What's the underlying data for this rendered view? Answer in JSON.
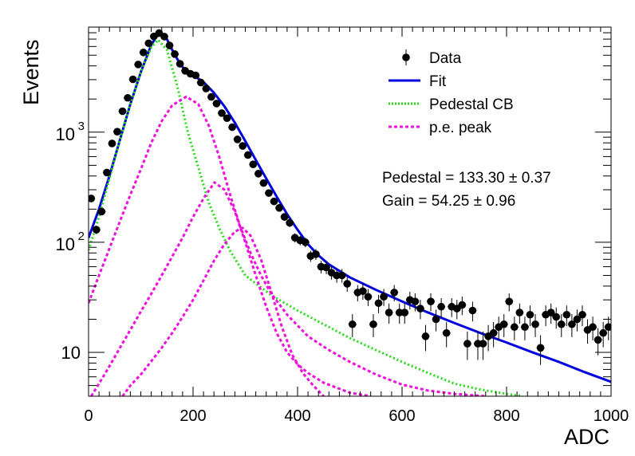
{
  "chart_data": {
    "type": "scatter",
    "xlabel": "ADC",
    "ylabel": "Events",
    "xlim": [
      0,
      1000
    ],
    "ylim": [
      4,
      9000
    ],
    "yscale": "log",
    "grid": false,
    "legend_position": "top-right",
    "x_ticks": [
      "0",
      "200",
      "400",
      "600",
      "800",
      "1000"
    ],
    "y_ticks": [
      {
        "base": "10",
        "exp": "",
        "value": 10
      },
      {
        "base": "10",
        "exp": "2",
        "value": 100
      },
      {
        "base": "10",
        "exp": "3",
        "value": 1000
      }
    ],
    "legend": [
      {
        "label": "Data",
        "style": "marker",
        "color": "#000000"
      },
      {
        "label": "Fit",
        "style": "solid",
        "color": "#0000dd"
      },
      {
        "label": "Pedestal CB",
        "style": "dotted",
        "color": "#22dd11"
      },
      {
        "label": "p.e. peak",
        "style": "dashed",
        "color": "#ee11dd"
      }
    ],
    "annotations": [
      {
        "label": "Pedestal = 133.30",
        "pm": "±",
        "value": "0.37"
      },
      {
        "label": "Gain = 54.25",
        "pm": "±",
        "value": "0.96"
      }
    ],
    "series": [
      {
        "name": "Data",
        "color": "#000000",
        "x": [
          5,
          15,
          25,
          35,
          45,
          55,
          65,
          75,
          85,
          95,
          105,
          115,
          125,
          135,
          145,
          155,
          165,
          175,
          185,
          195,
          205,
          215,
          225,
          235,
          245,
          255,
          265,
          275,
          285,
          295,
          305,
          315,
          325,
          335,
          345,
          355,
          365,
          375,
          385,
          395,
          405,
          415,
          425,
          435,
          445,
          455,
          465,
          475,
          485,
          495,
          505,
          515,
          525,
          535,
          545,
          555,
          565,
          575,
          585,
          595,
          605,
          615,
          625,
          635,
          645,
          655,
          665,
          675,
          685,
          695,
          705,
          715,
          725,
          735,
          745,
          755,
          765,
          775,
          785,
          795,
          805,
          815,
          825,
          835,
          845,
          855,
          865,
          875,
          885,
          895,
          905,
          915,
          925,
          935,
          945,
          955,
          965,
          975,
          985,
          995
        ],
        "y": [
          250,
          130,
          190,
          430,
          790,
          1010,
          1550,
          2050,
          3020,
          4120,
          5300,
          6420,
          7410,
          7950,
          7380,
          6130,
          5120,
          4180,
          3610,
          3390,
          3280,
          2820,
          2490,
          2090,
          1820,
          1490,
          1340,
          1110,
          860,
          750,
          620,
          510,
          420,
          345,
          280,
          235,
          205,
          170,
          150,
          110,
          104,
          100,
          75,
          78,
          60,
          59,
          53,
          50,
          50,
          42,
          18,
          35,
          36,
          32,
          18,
          28,
          32,
          23,
          35,
          23,
          23,
          30,
          29,
          25,
          14,
          29,
          20,
          26,
          15,
          26,
          25,
          27,
          12,
          24,
          12,
          12,
          14,
          15,
          17,
          18,
          29,
          17,
          23,
          17,
          22,
          18,
          11,
          22,
          23,
          21,
          18,
          22,
          18,
          20,
          22,
          16,
          17,
          13,
          15,
          17
        ]
      },
      {
        "name": "Fit",
        "color": "#0000dd",
        "x": [
          0,
          20,
          40,
          60,
          80,
          100,
          120,
          130,
          140,
          150,
          160,
          170,
          180,
          190,
          200,
          220,
          240,
          260,
          280,
          300,
          320,
          340,
          360,
          380,
          400,
          420,
          440,
          460,
          480,
          500,
          550,
          600,
          650,
          700,
          750,
          800,
          850,
          900,
          950,
          1000
        ],
        "y": [
          110,
          200,
          400,
          850,
          1800,
          3500,
          6200,
          7400,
          7700,
          7000,
          5600,
          4600,
          3900,
          3550,
          3300,
          2850,
          2280,
          1720,
          1220,
          830,
          560,
          380,
          260,
          180,
          130,
          96,
          76,
          63,
          55,
          48,
          37,
          29,
          23,
          18.5,
          15,
          12.3,
          10,
          8.2,
          6.6,
          5.4
        ]
      },
      {
        "name": "Pedestal CB",
        "color": "#22dd11",
        "x": [
          0,
          20,
          40,
          60,
          80,
          100,
          120,
          133,
          150,
          170,
          190,
          210,
          230,
          250,
          270,
          300,
          350,
          400,
          450,
          500,
          550,
          600,
          650,
          700,
          750,
          800,
          830
        ],
        "y": [
          85,
          170,
          380,
          850,
          1800,
          3500,
          5900,
          6900,
          5600,
          2600,
          1000,
          480,
          230,
          135,
          85,
          50,
          33,
          24,
          18,
          13.5,
          10.5,
          8.2,
          6.5,
          5.2,
          4.6,
          4.2,
          4
        ]
      },
      {
        "name": "p.e. peak 1",
        "color": "#ee11dd",
        "x": [
          0,
          20,
          40,
          60,
          80,
          100,
          120,
          140,
          160,
          187,
          210,
          230,
          250,
          270,
          290,
          310,
          330,
          350,
          380,
          420,
          460,
          500,
          550,
          600,
          650,
          700,
          760
        ],
        "y": [
          28,
          50,
          88,
          155,
          270,
          460,
          800,
          1260,
          1750,
          2100,
          1800,
          1150,
          600,
          280,
          140,
          80,
          50,
          34,
          22,
          14,
          10.5,
          8.2,
          6.3,
          5.1,
          4.5,
          4.2,
          4
        ]
      },
      {
        "name": "p.e. peak 2",
        "color": "#ee11dd",
        "x": [
          5,
          20,
          40,
          60,
          80,
          100,
          120,
          140,
          160,
          180,
          200,
          220,
          241,
          260,
          280,
          300,
          320,
          340,
          360,
          380,
          400,
          420,
          450,
          500,
          540
        ],
        "y": [
          4,
          5.2,
          7.5,
          11,
          16,
          23.5,
          34,
          50,
          74,
          110,
          170,
          250,
          350,
          300,
          190,
          100,
          50,
          26,
          15,
          10,
          7.8,
          6.5,
          5.3,
          4.3,
          4
        ]
      },
      {
        "name": "p.e. peak 3",
        "color": "#ee11dd",
        "x": [
          65,
          80,
          100,
          120,
          140,
          160,
          180,
          200,
          220,
          240,
          260,
          280,
          295,
          310,
          330,
          350,
          370,
          390,
          410,
          430,
          450
        ],
        "y": [
          4,
          5,
          6.3,
          8.3,
          11,
          15,
          21,
          30,
          45,
          68,
          96,
          125,
          135,
          115,
          70,
          35,
          17,
          9.5,
          6.5,
          5,
          4
        ]
      }
    ]
  }
}
